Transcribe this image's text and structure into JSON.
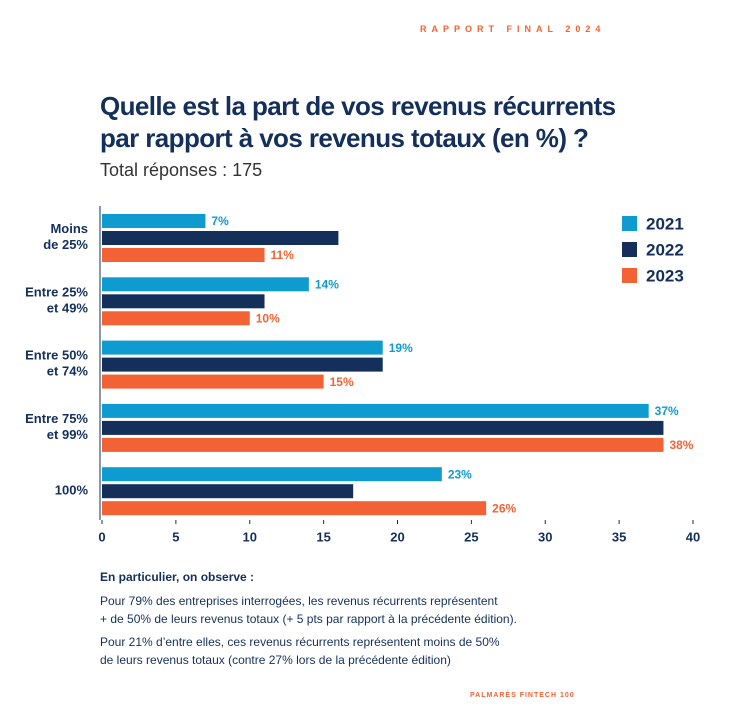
{
  "header": "RAPPORT FINAL 2024",
  "chart_data": {
    "type": "hbar",
    "title": "Quelle est la part de vos revenus récurrents\npar rapport à vos revenus totaux (en %) ?",
    "subtitle": "Total réponses : 175",
    "categories": [
      "Moins\nde 25%",
      "Entre 25%\net 49%",
      "Entre 50%\net 74%",
      "Entre 75%\net 99%",
      "100%"
    ],
    "series": [
      {
        "name": "2021",
        "color": "#0e9bd0",
        "values": [
          7,
          14,
          19,
          37,
          23
        ],
        "value_labels": [
          "7%",
          "14%",
          "19%",
          "37%",
          "23%"
        ]
      },
      {
        "name": "2022",
        "color": "#14305a",
        "values": [
          16,
          11,
          19,
          38,
          17
        ]
      },
      {
        "name": "2023",
        "color": "#f26234",
        "values": [
          11,
          10,
          15,
          38,
          26
        ],
        "value_labels": [
          "11%",
          "10%",
          "15%",
          "38%",
          "26%"
        ]
      }
    ],
    "xlim": [
      0,
      40
    ],
    "xticks": [
      0,
      5,
      10,
      15,
      20,
      25,
      30,
      35,
      40
    ],
    "grid": false,
    "legend": "top-right"
  },
  "notes": {
    "heading": "En particulier, on observe :",
    "paragraphs": [
      "Pour 79% des entreprises interrogées, les revenus récurrents représentent\n+ de 50% de leurs revenus totaux (+ 5 pts par rapport à la précédente édition).",
      "Pour 21% d’entre elles, ces revenus récurrents représentent moins de 50%\nde leurs revenus totaux (contre 27% lors de la précédente édition)"
    ]
  },
  "footer": "PALMARÈS FINTECH 100"
}
